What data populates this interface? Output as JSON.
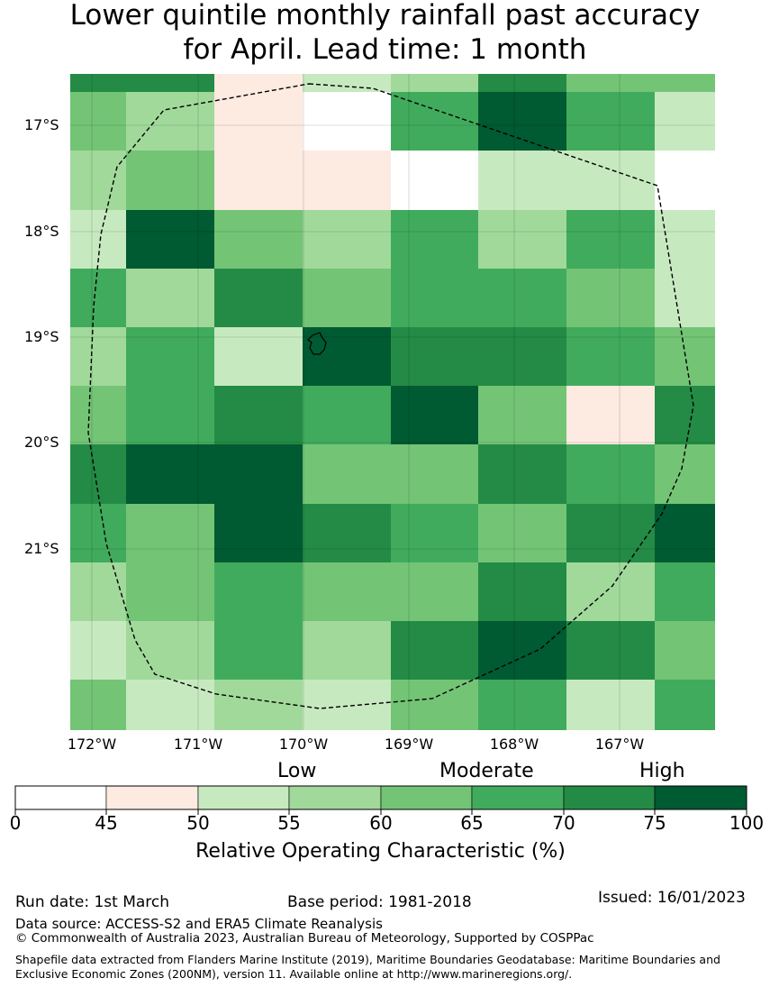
{
  "title_line1": "Lower quintile monthly rainfall past accuracy",
  "title_line2": "for April. Lead time: 1 month",
  "colors": [
    "#ffffff",
    "#fdeae1",
    "#c7e9c0",
    "#a1d99b",
    "#74c476",
    "#41ab5d",
    "#238b45",
    "#005a32"
  ],
  "grid": [
    [
      6,
      6,
      1,
      2,
      3,
      6,
      4,
      4
    ],
    [
      4,
      3,
      1,
      0,
      5,
      7,
      5,
      2
    ],
    [
      3,
      4,
      1,
      1,
      0,
      2,
      2,
      0
    ],
    [
      2,
      7,
      4,
      3,
      5,
      3,
      5,
      2
    ],
    [
      5,
      3,
      6,
      4,
      5,
      5,
      4,
      2
    ],
    [
      3,
      5,
      2,
      7,
      6,
      6,
      5,
      4
    ],
    [
      4,
      5,
      6,
      5,
      7,
      4,
      1,
      6
    ],
    [
      6,
      7,
      7,
      4,
      4,
      6,
      5,
      4
    ],
    [
      5,
      4,
      7,
      6,
      5,
      4,
      6,
      7
    ],
    [
      3,
      4,
      5,
      4,
      4,
      6,
      3,
      5
    ],
    [
      2,
      3,
      5,
      3,
      6,
      7,
      6,
      4
    ],
    [
      4,
      2,
      3,
      2,
      4,
      5,
      2,
      5
    ]
  ],
  "lat_labels": [
    "17°S",
    "18°S",
    "19°S",
    "20°S",
    "21°S"
  ],
  "lon_labels": [
    "172°W",
    "171°W",
    "170°W",
    "169°W",
    "168°W",
    "167°W"
  ],
  "colorbar": {
    "ticks": [
      "0",
      "45",
      "50",
      "55",
      "60",
      "65",
      "70",
      "75",
      "100"
    ],
    "category_low": "Low",
    "category_moderate": "Moderate",
    "category_high": "High",
    "label": "Relative Operating Characteristic (%)"
  },
  "footer": {
    "run_date": "Run date: 1st March",
    "base_period": "Base period: 1981-2018",
    "issued": "Issued: 16/01/2023",
    "data_source": "Data source: ACCESS-S2 and ERA5 Climate Reanalysis",
    "copyright": "© Commonwealth of Australia 2023, Australian Bureau of Meteorology, Supported by COSPPac",
    "shapefile": "Shapefile data extracted from Flanders Marine Institute (2019), Maritime Boundaries Geodatabase: Maritime Boundaries and Exclusive Economic Zones (200NM), version 11. Available online at http://www.marineregions.org/."
  }
}
